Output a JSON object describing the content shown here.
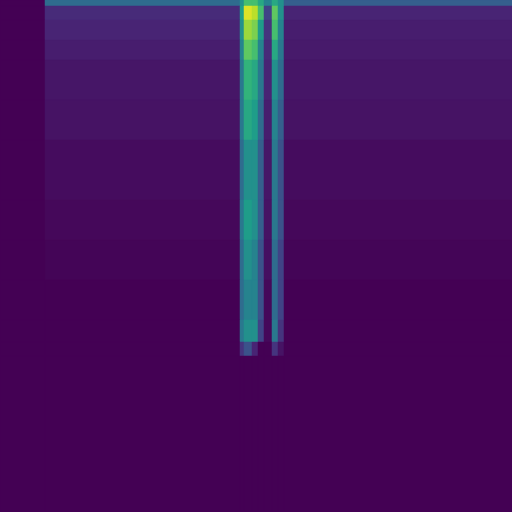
{
  "chart_data": {
    "type": "heatmap",
    "color": "viridis",
    "tick_labels": false,
    "xlim": [
      0,
      512
    ],
    "ylim": [
      512,
      0
    ],
    "color_range": [
      0,
      1
    ],
    "x_bins": [
      0,
      45,
      240,
      244,
      252,
      258,
      264,
      272,
      278,
      284,
      512
    ],
    "y_bins": [
      0,
      6,
      20,
      40,
      60,
      100,
      140,
      200,
      240,
      280,
      320,
      342,
      356,
      512
    ],
    "cells": [
      [
        0,
        0.35,
        0.5,
        0.7,
        0.7,
        0.6,
        0.45,
        0.6,
        0.5,
        0.3
      ],
      [
        0,
        0.12,
        0.55,
        0.95,
        0.9,
        0.7,
        0.2,
        0.75,
        0.5,
        0.1
      ],
      [
        0,
        0.1,
        0.5,
        0.85,
        0.8,
        0.55,
        0.15,
        0.7,
        0.45,
        0.08
      ],
      [
        0,
        0.08,
        0.45,
        0.75,
        0.7,
        0.45,
        0.12,
        0.6,
        0.4,
        0.07
      ],
      [
        0,
        0.06,
        0.4,
        0.65,
        0.6,
        0.4,
        0.1,
        0.5,
        0.35,
        0.06
      ],
      [
        0,
        0.05,
        0.4,
        0.6,
        0.55,
        0.35,
        0.08,
        0.45,
        0.3,
        0.05
      ],
      [
        0,
        0.03,
        0.35,
        0.5,
        0.5,
        0.3,
        0.06,
        0.4,
        0.25,
        0.03
      ],
      [
        0,
        0.02,
        0.4,
        0.55,
        0.5,
        0.3,
        0.05,
        0.4,
        0.25,
        0.02
      ],
      [
        0,
        0.01,
        0.35,
        0.5,
        0.45,
        0.25,
        0.04,
        0.35,
        0.2,
        0.01
      ],
      [
        0,
        0,
        0.35,
        0.45,
        0.45,
        0.25,
        0.02,
        0.35,
        0.2,
        0
      ],
      [
        0,
        0,
        0.4,
        0.5,
        0.5,
        0.2,
        0.02,
        0.4,
        0.15,
        0
      ],
      [
        0,
        0,
        0.15,
        0.25,
        0.1,
        0,
        0,
        0.15,
        0.05,
        0
      ],
      [
        0,
        0,
        0,
        0,
        0,
        0,
        0,
        0,
        0,
        0
      ]
    ]
  }
}
